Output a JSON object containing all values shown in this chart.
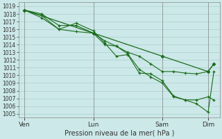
{
  "title": "Pression niveau de la mer( hPa )",
  "background_color": "#cce8e8",
  "grid_color": "#aad0d0",
  "line_color": "#1a6b1a",
  "yticks": [
    1005,
    1006,
    1007,
    1008,
    1009,
    1010,
    1011,
    1012,
    1013,
    1014,
    1015,
    1016,
    1017,
    1018,
    1019
  ],
  "ylim": [
    1004.5,
    1019.5
  ],
  "x_tick_labels": [
    "Ven",
    "Lun",
    "Sam",
    "Dim"
  ],
  "x_tick_positions": [
    0,
    12,
    24,
    32
  ],
  "xlim": [
    -1,
    34
  ],
  "series_diamond_x": [
    0,
    12,
    24,
    32,
    33
  ],
  "series_diamond_y": [
    1018.5,
    1015.5,
    1012.5,
    1010.5,
    1011.5
  ],
  "series_plus1_x": [
    0,
    3,
    6,
    9,
    12,
    14,
    16,
    18,
    20,
    22,
    24,
    26,
    28,
    30,
    32,
    33
  ],
  "series_plus1_y": [
    1018.5,
    1018.0,
    1016.5,
    1016.5,
    1015.5,
    1014.5,
    1013.8,
    1013.0,
    1012.5,
    1011.5,
    1010.5,
    1010.5,
    1010.3,
    1010.2,
    1010.5,
    1011.5
  ],
  "series_plus2_x": [
    0,
    3,
    6,
    9,
    12,
    14,
    16,
    18,
    20,
    22,
    24,
    26,
    28,
    30,
    32,
    33
  ],
  "series_plus2_y": [
    1018.5,
    1017.5,
    1016.0,
    1016.8,
    1015.8,
    1014.2,
    1012.5,
    1012.7,
    1010.3,
    1010.2,
    1009.3,
    1007.3,
    1006.8,
    1006.3,
    1005.2,
    1010.5
  ],
  "series_plus3_x": [
    0,
    3,
    6,
    9,
    12,
    14,
    16,
    18,
    20,
    22,
    24,
    26,
    28,
    30,
    32,
    33
  ],
  "series_plus3_y": [
    1018.5,
    1017.8,
    1016.0,
    1015.7,
    1015.5,
    1014.0,
    1013.8,
    1012.8,
    1010.8,
    1009.8,
    1009.0,
    1007.2,
    1006.8,
    1006.8,
    1007.2,
    1006.8
  ]
}
